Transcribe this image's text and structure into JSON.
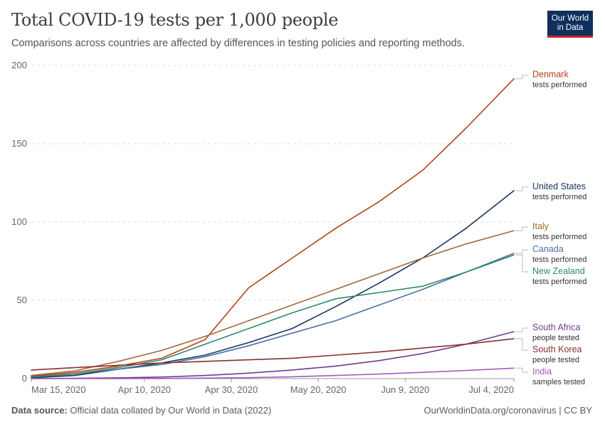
{
  "header": {
    "title": "Total COVID-19 tests per 1,000 people",
    "subtitle": "Comparisons across countries are affected by differences in testing policies and reporting methods.",
    "logo_line1": "Our World",
    "logo_line2": "in Data"
  },
  "footer": {
    "source_label": "Data source:",
    "source_text": "Official data collated by Our World in Data (2022)",
    "right_text": "OurWorldinData.org/coronavirus | CC BY"
  },
  "colors": {
    "Denmark": "#b5401b",
    "United States": "#18345e",
    "Italy": "#a26a3b",
    "Canada": "#4d72a3",
    "New Zealand": "#2d8a6c",
    "South Africa": "#6d3e91",
    "South Korea": "#8a2f2f",
    "India": "#a35cb8"
  },
  "chart_data": {
    "type": "line",
    "title": "Total COVID-19 tests per 1,000 people",
    "xlabel": "",
    "ylabel": "",
    "x_tick_labels": [
      "Mar 15, 2020",
      "Apr 10, 2020",
      "Apr 30, 2020",
      "May 20, 2020",
      "Jun 9, 2020",
      "Jul 4, 2020"
    ],
    "x_tick_days": [
      0,
      26,
      46,
      66,
      86,
      111
    ],
    "x_range_days": [
      0,
      111
    ],
    "y_ticks": [
      0,
      50,
      100,
      150,
      200
    ],
    "ylim": [
      0,
      200
    ],
    "grid": "horizontal dashed",
    "legend_placement": "right, labels at line ends",
    "series": [
      {
        "name": "Denmark",
        "sublabel": "tests performed",
        "days": [
          0,
          10,
          20,
          30,
          40,
          50,
          60,
          70,
          80,
          90,
          100,
          111
        ],
        "values": [
          1.5,
          4,
          8,
          13,
          25,
          58,
          77,
          96,
          113,
          133,
          160,
          191.5
        ]
      },
      {
        "name": "United States",
        "sublabel": "tests performed",
        "days": [
          0,
          10,
          20,
          30,
          40,
          50,
          60,
          70,
          80,
          90,
          100,
          111
        ],
        "values": [
          0.5,
          2,
          6,
          10,
          15,
          23,
          32,
          46,
          61,
          77,
          96,
          120
        ]
      },
      {
        "name": "Italy",
        "sublabel": "tests performed",
        "days": [
          0,
          10,
          20,
          30,
          40,
          50,
          60,
          70,
          80,
          90,
          100,
          111
        ],
        "values": [
          2,
          5,
          11,
          18,
          27,
          37,
          47,
          57,
          67,
          77,
          86,
          94.5
        ]
      },
      {
        "name": "Canada",
        "sublabel": "tests performed",
        "days": [
          0,
          10,
          20,
          30,
          40,
          50,
          60,
          70,
          80,
          90,
          100,
          111
        ],
        "values": [
          1,
          3,
          6,
          9,
          14,
          21,
          29,
          37,
          47,
          57,
          68,
          80
        ]
      },
      {
        "name": "New Zealand",
        "sublabel": "tests performed",
        "days": [
          0,
          10,
          20,
          30,
          40,
          50,
          60,
          70,
          80,
          90,
          100,
          111
        ],
        "values": [
          1,
          3,
          7,
          12,
          22,
          32,
          42,
          51,
          55,
          59,
          68,
          79
        ]
      },
      {
        "name": "South Africa",
        "sublabel": "people tested",
        "days": [
          0,
          10,
          20,
          30,
          40,
          50,
          60,
          70,
          80,
          90,
          100,
          111
        ],
        "values": [
          0,
          0.2,
          0.5,
          1,
          2,
          3.5,
          5.5,
          8,
          11.5,
          16,
          22,
          30
        ]
      },
      {
        "name": "South Korea",
        "sublabel": "people tested",
        "days": [
          0,
          10,
          20,
          30,
          40,
          50,
          60,
          70,
          80,
          90,
          100,
          111
        ],
        "values": [
          5.5,
          7,
          8.5,
          10,
          11,
          12,
          13,
          15,
          17,
          19.5,
          22,
          25.5
        ]
      },
      {
        "name": "India",
        "sublabel": "samples tested",
        "days": [
          0,
          10,
          20,
          30,
          40,
          50,
          60,
          70,
          80,
          90,
          100,
          111
        ],
        "values": [
          0,
          0,
          0.05,
          0.1,
          0.3,
          0.6,
          1.2,
          2,
          2.9,
          4,
          5.2,
          6.7
        ]
      }
    ]
  }
}
